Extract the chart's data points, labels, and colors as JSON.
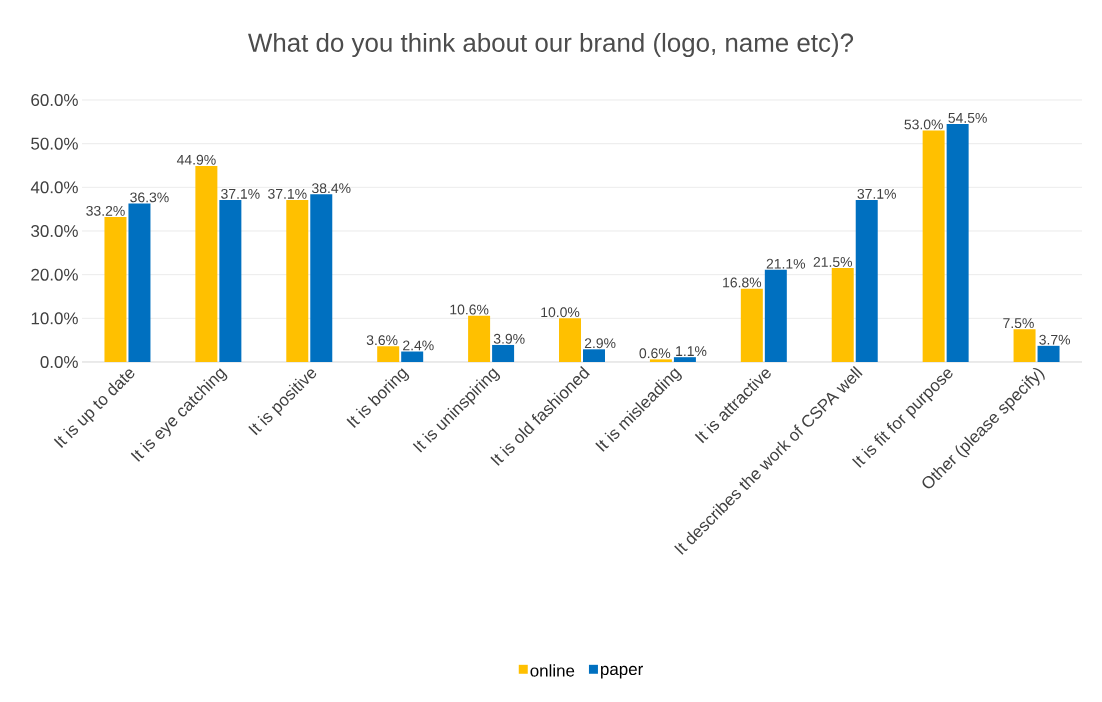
{
  "chart_data": {
    "type": "bar",
    "title": "What do you think about our brand (logo, name etc)?",
    "categories": [
      "It is up to date",
      "It is eye catching",
      "It is positive",
      "It is boring",
      "It is uninspiring",
      "It is old fashioned",
      "It is misleading",
      "It is attractive",
      "It describes the work of CSPA well",
      "It is fit for purpose",
      "Other (please specify)"
    ],
    "series": [
      {
        "name": "online",
        "color": "#ffc000",
        "values": [
          33.2,
          44.9,
          37.1,
          3.6,
          10.6,
          10.0,
          0.6,
          16.8,
          21.5,
          53.0,
          7.5
        ],
        "value_labels": [
          "33.2%",
          "44.9%",
          "37.1%",
          "3.6%",
          "10.6%",
          "10.0%",
          "0.6%",
          "16.8%",
          "21.5%",
          "53.0%",
          "7.5%"
        ]
      },
      {
        "name": "paper",
        "color": "#0070c0",
        "values": [
          36.3,
          37.1,
          38.4,
          2.4,
          3.9,
          2.9,
          1.1,
          21.1,
          37.1,
          54.5,
          3.7
        ],
        "value_labels": [
          "36.3%",
          "37.1%",
          "38.4%",
          "2.4%",
          "3.9%",
          "2.9%",
          "1.1%",
          "21.1%",
          "37.1%",
          "54.5%",
          "3.7%"
        ]
      }
    ],
    "ylim": [
      0,
      60
    ],
    "yticks": [
      {
        "value": 0,
        "label": "0.0%"
      },
      {
        "value": 10,
        "label": "10.0%"
      },
      {
        "value": 20,
        "label": "20.0%"
      },
      {
        "value": 30,
        "label": "30.0%"
      },
      {
        "value": 40,
        "label": "40.0%"
      },
      {
        "value": 50,
        "label": "50.0%"
      },
      {
        "value": 60,
        "label": "60.0%"
      }
    ],
    "grid": "y",
    "legend": "bottom"
  }
}
